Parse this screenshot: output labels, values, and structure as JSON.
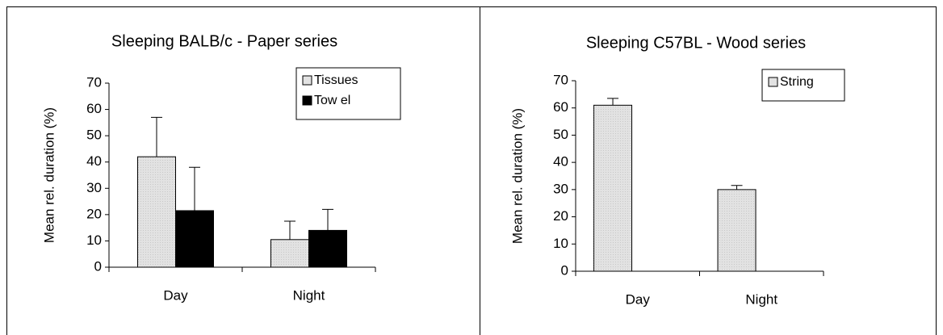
{
  "chart_data": [
    {
      "type": "bar",
      "title": "Sleeping BALB/c - Paper series",
      "y_label": "Mean rel. duration (%)",
      "categories": [
        "Day",
        "Night"
      ],
      "series": [
        {
          "name": "Tissues",
          "color": "#e2e2e2",
          "values": [
            42,
            10.5
          ],
          "errors": [
            15,
            7
          ]
        },
        {
          "name": "Tow el",
          "color": "#000000",
          "values": [
            21.5,
            14
          ],
          "errors": [
            16.5,
            8
          ]
        }
      ],
      "ylim": [
        0,
        70
      ],
      "yticks": [
        0,
        10,
        20,
        30,
        40,
        50,
        60,
        70
      ]
    },
    {
      "type": "bar",
      "title": "Sleeping C57BL - Wood series",
      "y_label": "Mean rel. duration (%)",
      "categories": [
        "Day",
        "Night"
      ],
      "series": [
        {
          "name": "String",
          "color": "#e2e2e2",
          "values": [
            61,
            30
          ],
          "errors": [
            2.5,
            1.5
          ]
        }
      ],
      "ylim": [
        0,
        70
      ],
      "yticks": [
        0,
        10,
        20,
        30,
        40,
        50,
        60,
        70
      ]
    }
  ]
}
